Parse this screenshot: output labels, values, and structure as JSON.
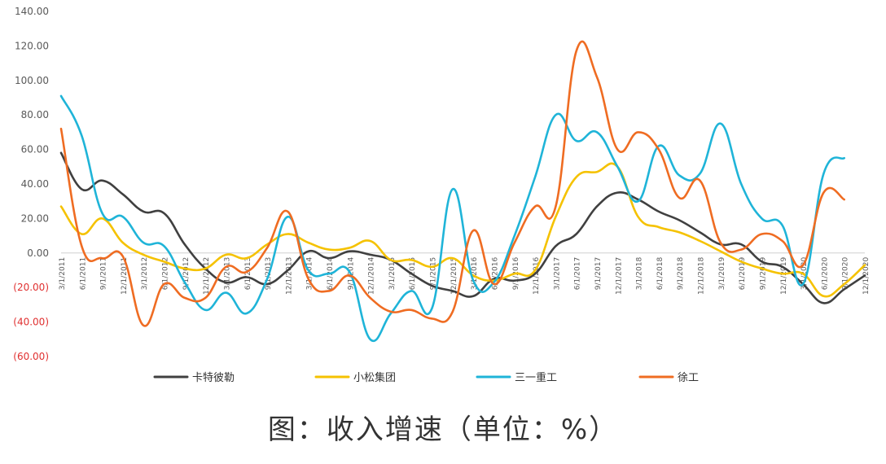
{
  "caption": "图：收入增速（单位：%）",
  "chart_data": {
    "type": "line",
    "title": "",
    "xlabel": "",
    "ylabel": "",
    "ylim": [
      -60,
      140
    ],
    "grid": false,
    "legend_position": "bottom",
    "y_ticks": [
      {
        "value": 140,
        "label": "140.00",
        "color": "#595959"
      },
      {
        "value": 120,
        "label": "120.00",
        "color": "#595959"
      },
      {
        "value": 100,
        "label": "100.00",
        "color": "#595959"
      },
      {
        "value": 80,
        "label": "80.00",
        "color": "#595959"
      },
      {
        "value": 60,
        "label": "60.00",
        "color": "#595959"
      },
      {
        "value": 40,
        "label": "40.00",
        "color": "#595959"
      },
      {
        "value": 20,
        "label": "20.00",
        "color": "#595959"
      },
      {
        "value": 0,
        "label": "0.00",
        "color": "#595959"
      },
      {
        "value": -20,
        "label": "(20.00)",
        "color": "#e03030"
      },
      {
        "value": -40,
        "label": "(40.00)",
        "color": "#e03030"
      },
      {
        "value": -60,
        "label": "(60.00)",
        "color": "#e03030"
      }
    ],
    "categories": [
      "3/1/2011",
      "6/1/2011",
      "9/1/2011",
      "12/1/2011",
      "3/1/2012",
      "6/1/2012",
      "9/1/2012",
      "12/1/2012",
      "3/1/2013",
      "6/1/2013",
      "9/1/2013",
      "12/1/2013",
      "3/1/2014",
      "6/1/2014",
      "9/1/2014",
      "12/1/2014",
      "3/1/2015",
      "6/1/2015",
      "9/1/2015",
      "12/1/2015",
      "3/1/2016",
      "6/1/2016",
      "9/1/2016",
      "12/1/2016",
      "3/1/2017",
      "6/1/2017",
      "9/1/2017",
      "12/1/2017",
      "3/1/2018",
      "6/1/2018",
      "9/1/2018",
      "12/1/2018",
      "3/1/2019",
      "6/1/2019",
      "9/1/2019",
      "12/1/2019",
      "3/1/2020",
      "6/1/2020",
      "9/1/2020",
      "12/1/2020"
    ],
    "series": [
      {
        "name": "卡特彼勒",
        "color": "#404040",
        "values": [
          58,
          37,
          42,
          34,
          24,
          23,
          5,
          -9,
          -17,
          -14,
          -18,
          -10,
          1,
          -3,
          1,
          -1,
          -4,
          -12,
          -19,
          -22,
          -25,
          -15,
          -16,
          -12,
          4,
          11,
          27,
          35,
          31,
          24,
          19,
          12,
          5,
          5,
          -5,
          -8,
          -18,
          -29,
          -21,
          -13
        ]
      },
      {
        "name": "小松集团",
        "color": "#f5c200",
        "values": [
          27,
          11,
          20,
          6,
          -1,
          -5,
          -9,
          -9,
          -1,
          -3,
          5,
          11,
          6,
          2,
          3,
          7,
          -4,
          -4,
          -8,
          -3,
          -13,
          -16,
          -12,
          -10,
          21,
          44,
          47,
          50,
          21,
          15,
          12,
          7,
          1,
          -5,
          -9,
          -12,
          -12,
          -25,
          -18,
          -7
        ]
      },
      {
        "name": "三一重工",
        "color": "#1fb4d8",
        "values": [
          91,
          68,
          23,
          21,
          6,
          4,
          -17,
          -33,
          -23,
          -35,
          -15,
          21,
          -10,
          -12,
          -11,
          -50,
          -35,
          -22,
          -32,
          37,
          -16,
          -17,
          10,
          44,
          80,
          65,
          70,
          50,
          30,
          62,
          45,
          46,
          75,
          40,
          20,
          16,
          -18,
          46,
          55,
          null
        ]
      },
      {
        "name": "徐工",
        "color": "#ef6c22",
        "values": [
          72,
          4,
          -3,
          -2,
          -42,
          -18,
          -26,
          -26,
          -8,
          -11,
          3,
          24,
          -15,
          -22,
          -13,
          -26,
          -34,
          -33,
          -38,
          -34,
          13,
          -18,
          6,
          27,
          27,
          117,
          102,
          60,
          70,
          60,
          32,
          42,
          6,
          2,
          11,
          7,
          -7,
          35,
          31,
          null
        ]
      }
    ]
  }
}
